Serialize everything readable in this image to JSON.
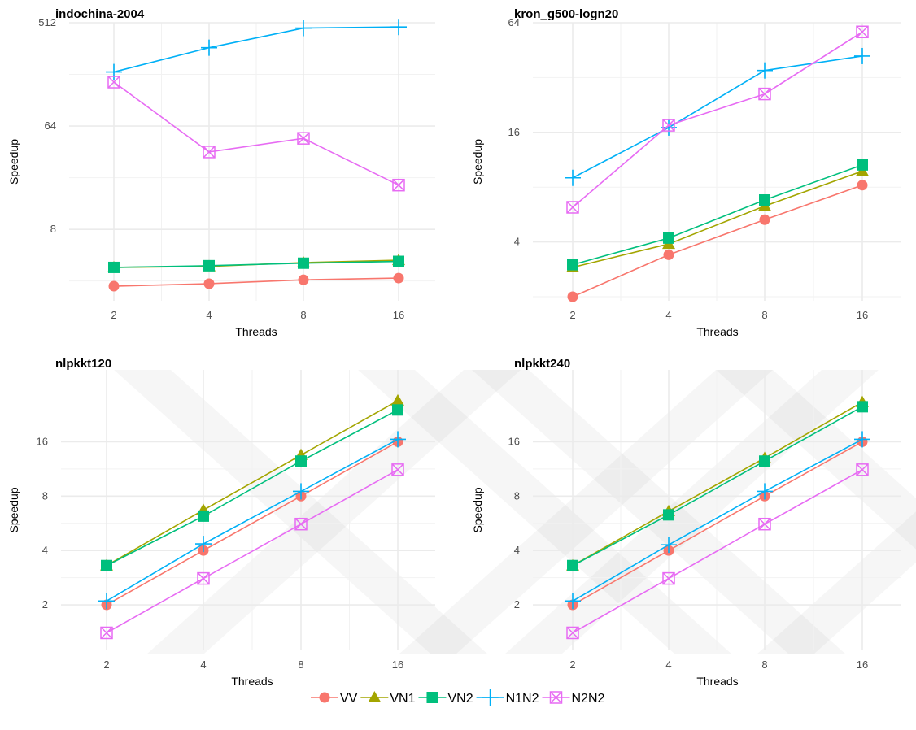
{
  "chart_data": [
    {
      "type": "line",
      "title": "indochina-2004",
      "xlabel": "Threads",
      "ylabel": "Speedup",
      "x": [
        2,
        4,
        8,
        16
      ],
      "xticks": [
        "2",
        "4",
        "8",
        "16"
      ],
      "yscale": "log2",
      "ylim": [
        1.9,
        512
      ],
      "yticks": [
        8,
        64,
        512
      ],
      "yticklabels": [
        "8",
        "64",
        "512"
      ],
      "series": [
        {
          "name": "VV",
          "values": [
            2.55,
            2.68,
            2.9,
            3.0
          ]
        },
        {
          "name": "VN1",
          "values": [
            3.72,
            3.8,
            4.1,
            4.3
          ]
        },
        {
          "name": "VN2",
          "values": [
            3.72,
            3.85,
            4.05,
            4.2
          ]
        },
        {
          "name": "N1N2",
          "values": [
            190,
            310,
            460,
            470
          ]
        },
        {
          "name": "N2N2",
          "values": [
            155,
            38,
            50,
            19.5
          ]
        }
      ]
    },
    {
      "type": "line",
      "title": "kron_g500-logn20",
      "xlabel": "Threads",
      "ylabel": "Speedup",
      "x": [
        2,
        4,
        8,
        16
      ],
      "xticks": [
        "2",
        "4",
        "8",
        "16"
      ],
      "yscale": "log2",
      "ylim": [
        1.9,
        64
      ],
      "yticks": [
        4,
        16,
        64
      ],
      "yticklabels": [
        "4",
        "16",
        "64"
      ],
      "series": [
        {
          "name": "VV",
          "values": [
            2.0,
            3.4,
            5.3,
            8.2
          ]
        },
        {
          "name": "VN1",
          "values": [
            2.9,
            3.9,
            6.3,
            9.8
          ]
        },
        {
          "name": "VN2",
          "values": [
            3.0,
            4.2,
            6.8,
            10.6
          ]
        },
        {
          "name": "N1N2",
          "values": [
            9.0,
            17.0,
            35.0,
            42.0
          ]
        },
        {
          "name": "N2N2",
          "values": [
            6.2,
            17.5,
            26.0,
            57.0
          ]
        }
      ]
    },
    {
      "type": "line",
      "title": "nlpkkt120",
      "xlabel": "Threads",
      "ylabel": "Speedup",
      "x": [
        2,
        4,
        8,
        16
      ],
      "xticks": [
        "2",
        "4",
        "8",
        "16"
      ],
      "yscale": "log2",
      "ylim": [
        1.12,
        40
      ],
      "yticks": [
        2,
        4,
        8,
        16
      ],
      "yticklabels": [
        "2",
        "4",
        "8",
        "16"
      ],
      "series": [
        {
          "name": "VV",
          "values": [
            2.0,
            4.0,
            8.0,
            16.0
          ]
        },
        {
          "name": "VN1",
          "values": [
            3.3,
            6.7,
            13.5,
            27.0
          ]
        },
        {
          "name": "VN2",
          "values": [
            3.3,
            6.2,
            12.5,
            24.0
          ]
        },
        {
          "name": "N1N2",
          "values": [
            2.1,
            4.35,
            8.5,
            16.5
          ]
        },
        {
          "name": "N2N2",
          "values": [
            1.4,
            2.8,
            5.6,
            11.2
          ]
        }
      ]
    },
    {
      "type": "line",
      "title": "nlpkkt240",
      "xlabel": "Threads",
      "ylabel": "Speedup",
      "x": [
        2,
        4,
        8,
        16
      ],
      "xticks": [
        "2",
        "4",
        "8",
        "16"
      ],
      "yscale": "log2",
      "ylim": [
        1.12,
        40
      ],
      "yticks": [
        2,
        4,
        8,
        16
      ],
      "yticklabels": [
        "2",
        "4",
        "8",
        "16"
      ],
      "series": [
        {
          "name": "VV",
          "values": [
            2.0,
            4.0,
            8.0,
            16.0
          ]
        },
        {
          "name": "VN1",
          "values": [
            3.3,
            6.6,
            13.0,
            26.5
          ]
        },
        {
          "name": "VN2",
          "values": [
            3.3,
            6.3,
            12.5,
            25.0
          ]
        },
        {
          "name": "N1N2",
          "values": [
            2.1,
            4.3,
            8.5,
            16.5
          ]
        },
        {
          "name": "N2N2",
          "values": [
            1.4,
            2.8,
            5.6,
            11.2
          ]
        }
      ]
    }
  ],
  "legend": {
    "position": "bottom",
    "items": [
      {
        "name": "VV",
        "color": "#F8766D",
        "shape": "circle"
      },
      {
        "name": "VN1",
        "color": "#A3A500",
        "shape": "triangle"
      },
      {
        "name": "VN2",
        "color": "#00BF7D",
        "shape": "square"
      },
      {
        "name": "N1N2",
        "color": "#00B0F6",
        "shape": "plus"
      },
      {
        "name": "N2N2",
        "color": "#E76BF3",
        "shape": "square-cross"
      }
    ]
  },
  "grid": true
}
